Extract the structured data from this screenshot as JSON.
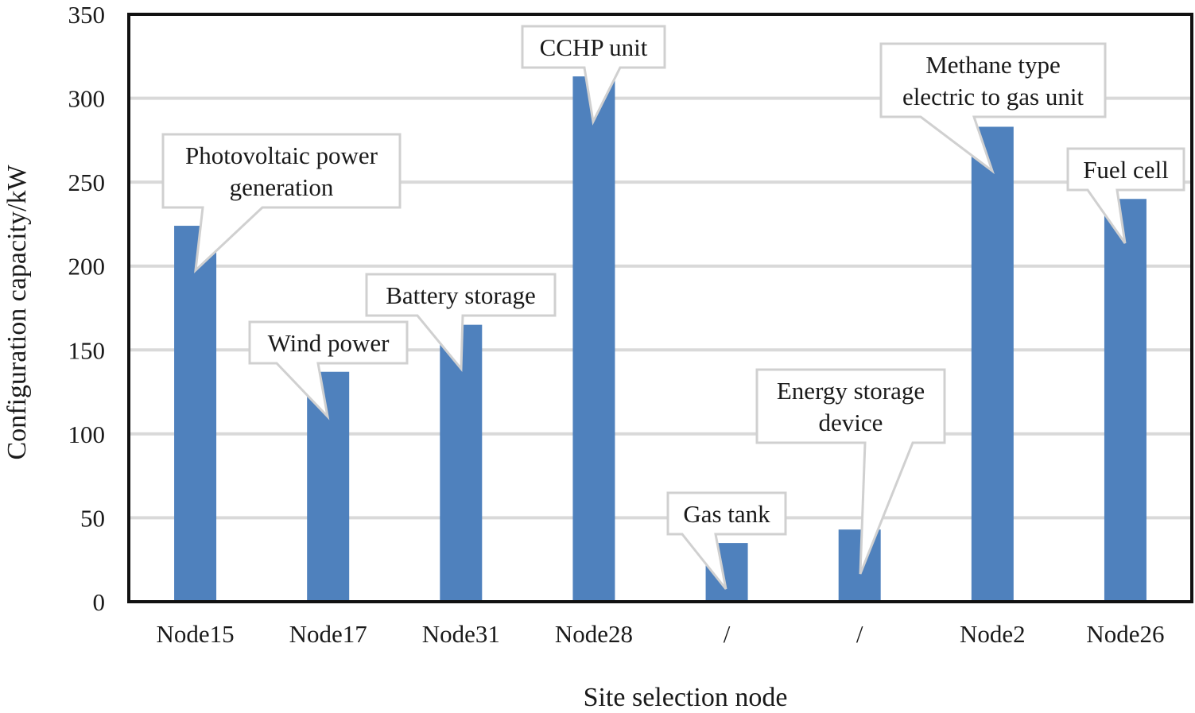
{
  "chart_data": {
    "type": "bar",
    "categories": [
      "Node15",
      "Node17",
      "Node31",
      "Node28",
      "/",
      "/",
      "Node2",
      "Node26"
    ],
    "values": [
      224,
      137,
      165,
      313,
      35,
      43,
      283,
      240
    ],
    "callouts": [
      [
        "Photovoltaic power",
        "generation"
      ],
      [
        "Wind power"
      ],
      [
        "Battery storage"
      ],
      [
        "CCHP unit"
      ],
      [
        "Gas tank"
      ],
      [
        "Energy storage",
        "device"
      ],
      [
        "Methane type",
        "electric to gas unit"
      ],
      [
        "Fuel cell"
      ]
    ],
    "xlabel": "Site selection node",
    "ylabel": "Configuration capacity/kW",
    "ylim": [
      0,
      350
    ],
    "yticks": [
      0,
      50,
      100,
      150,
      200,
      250,
      300,
      350
    ],
    "grid": true,
    "bar_color": "#4f81bd",
    "grid_color": "#d9d9d9",
    "callout_border_color": "#d0d0d0"
  }
}
